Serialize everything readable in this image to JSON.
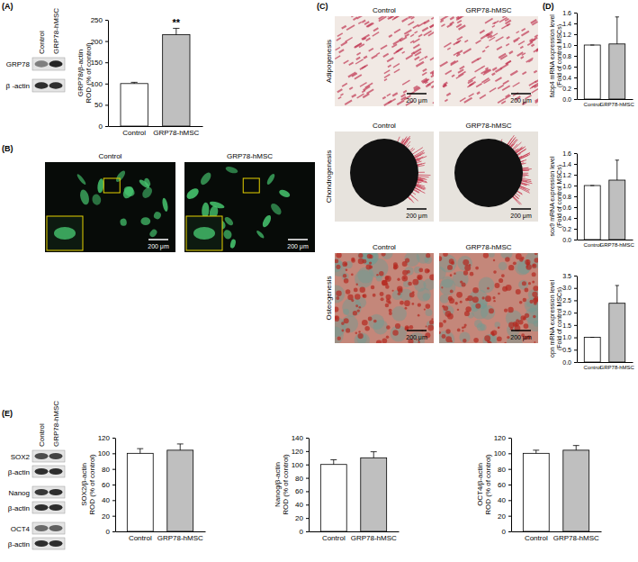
{
  "chart_data": [
    {
      "type": "bar",
      "categories": [
        "Control",
        "GRP78-hMSC"
      ],
      "values": [
        100,
        215
      ],
      "errors": [
        3,
        15
      ],
      "colors": [
        "#ffffff",
        "#bfbfbf"
      ],
      "ylabel": [
        "GRP78/β-actin",
        "ROD (% of control)"
      ],
      "ylim": [
        0,
        250
      ],
      "yticks": [
        0,
        50,
        100,
        150,
        200,
        250
      ],
      "annotations": [
        {
          "text": "**",
          "category": "GRP78-hMSC"
        }
      ]
    },
    {
      "type": "bar",
      "categories": [
        "Control",
        "GRP78-hMSC"
      ],
      "values": [
        1.0,
        1.02
      ],
      "errors": [
        0,
        0.5
      ],
      "colors": [
        "#ffffff",
        "#bfbfbf"
      ],
      "ylabel": [
        "fabp4 mRNA expression level",
        "(Fold of control MSCs)"
      ],
      "ylim": [
        0,
        1.6
      ],
      "yticks": [
        {
          "value": 0,
          "label": "0.0"
        },
        {
          "value": 0.2,
          "label": "0.2"
        },
        {
          "value": 0.4,
          "label": "0.4"
        },
        {
          "value": 0.6,
          "label": "0.6"
        },
        {
          "value": 0.8,
          "label": "0.8"
        },
        {
          "value": 1.0,
          "label": "1.0"
        },
        {
          "value": 1.2,
          "label": "1.2"
        },
        {
          "value": 1.4,
          "label": "1.4"
        },
        {
          "value": 1.6,
          "label": "1.6"
        }
      ]
    },
    {
      "type": "bar",
      "categories": [
        "Control",
        "GRP78-hMSC"
      ],
      "values": [
        1.0,
        1.1
      ],
      "errors": [
        0,
        0.37
      ],
      "colors": [
        "#ffffff",
        "#bfbfbf"
      ],
      "ylabel": [
        "sox9 mRNA expression level",
        "(Fold of control MSCs)"
      ],
      "ylim": [
        0,
        1.6
      ],
      "yticks": [
        {
          "value": 0,
          "label": "0.0"
        },
        {
          "value": 0.2,
          "label": "0.2"
        },
        {
          "value": 0.4,
          "label": "0.4"
        },
        {
          "value": 0.6,
          "label": "0.6"
        },
        {
          "value": 0.8,
          "label": "0.8"
        },
        {
          "value": 1.0,
          "label": "1.0"
        },
        {
          "value": 1.2,
          "label": "1.2"
        },
        {
          "value": 1.4,
          "label": "1.4"
        },
        {
          "value": 1.6,
          "label": "1.6"
        }
      ]
    },
    {
      "type": "bar",
      "categories": [
        "Control",
        "GRP78-hMSC"
      ],
      "values": [
        1.0,
        2.38
      ],
      "errors": [
        0,
        0.72
      ],
      "colors": [
        "#ffffff",
        "#bfbfbf"
      ],
      "ylabel": [
        "opn mRNA expression level",
        "(Fold of control MSCs)"
      ],
      "ylim": [
        0,
        3.5
      ],
      "yticks": [
        {
          "value": 0,
          "label": "0.0"
        },
        {
          "value": 0.5,
          "label": "0.5"
        },
        {
          "value": 1.0,
          "label": "1.0"
        },
        {
          "value": 1.5,
          "label": "1.5"
        },
        {
          "value": 2.0,
          "label": "2.0"
        },
        {
          "value": 2.5,
          "label": "2.5"
        },
        {
          "value": 3.0,
          "label": "3.0"
        },
        {
          "value": 3.5,
          "label": "3.5"
        }
      ]
    },
    {
      "type": "bar",
      "categories": [
        "Control",
        "GRP78-hMSC"
      ],
      "values": [
        100,
        104
      ],
      "errors": [
        6,
        8
      ],
      "colors": [
        "#ffffff",
        "#bfbfbf"
      ],
      "ylabel": [
        "SOX2/β-actin",
        "ROD (% of control)"
      ],
      "ylim": [
        0,
        120
      ],
      "yticks": [
        0,
        20,
        40,
        60,
        80,
        100,
        120
      ]
    },
    {
      "type": "bar",
      "categories": [
        "Control",
        "GRP78-hMSC"
      ],
      "values": [
        100,
        110
      ],
      "errors": [
        7,
        9
      ],
      "colors": [
        "#ffffff",
        "#bfbfbf"
      ],
      "ylabel": [
        "Nanog/β-actin",
        "ROD (% of control)"
      ],
      "ylim": [
        0,
        140
      ],
      "yticks": [
        0,
        20,
        40,
        60,
        80,
        100,
        120,
        140
      ]
    },
    {
      "type": "bar",
      "categories": [
        "Control",
        "GRP78-hMSC"
      ],
      "values": [
        100,
        104
      ],
      "errors": [
        4,
        6
      ],
      "colors": [
        "#ffffff",
        "#bfbfbf"
      ],
      "ylabel": [
        "OCT4/β-actin",
        "ROD (% of control)"
      ],
      "ylim": [
        0,
        120
      ],
      "yticks": [
        0,
        20,
        40,
        60,
        80,
        100,
        120
      ]
    }
  ],
  "figure": {
    "panels": [
      "(A)",
      "(B)",
      "(C)",
      "(D)",
      "(E)"
    ],
    "blot_A": {
      "columns": [
        "Control",
        "GRP78-hMSC"
      ],
      "rows": [
        "GRP78",
        "β -actin"
      ]
    },
    "images_B": {
      "columns": [
        "Control",
        "GRP78-hMSC"
      ],
      "scale": "200 μm"
    },
    "images_C": {
      "columns": [
        "Control",
        "GRP78-hMSC"
      ],
      "rows": [
        "Adipogenesis",
        "Chondrogenesis",
        "Osteogenesis"
      ],
      "scale": "200 μm"
    },
    "blot_E": {
      "columns": [
        "Control",
        "GRP78-hMSC"
      ],
      "rows": [
        "SOX2",
        "β-actin",
        "Nanog",
        "β-actin",
        "OCT4",
        "β-actin"
      ]
    }
  }
}
